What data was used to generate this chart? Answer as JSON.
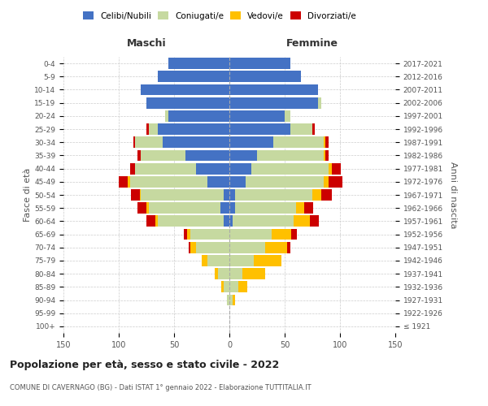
{
  "age_groups": [
    "100+",
    "95-99",
    "90-94",
    "85-89",
    "80-84",
    "75-79",
    "70-74",
    "65-69",
    "60-64",
    "55-59",
    "50-54",
    "45-49",
    "40-44",
    "35-39",
    "30-34",
    "25-29",
    "20-24",
    "15-19",
    "10-14",
    "5-9",
    "0-4"
  ],
  "birth_years": [
    "≤ 1921",
    "1922-1926",
    "1927-1931",
    "1932-1936",
    "1937-1941",
    "1942-1946",
    "1947-1951",
    "1952-1956",
    "1957-1961",
    "1962-1966",
    "1967-1971",
    "1972-1976",
    "1977-1981",
    "1982-1986",
    "1987-1991",
    "1992-1996",
    "1997-2001",
    "2002-2006",
    "2007-2011",
    "2012-2016",
    "2017-2021"
  ],
  "males": {
    "celibi": [
      0,
      0,
      0,
      0,
      0,
      0,
      0,
      0,
      5,
      8,
      5,
      20,
      30,
      40,
      60,
      65,
      55,
      75,
      80,
      65,
      55
    ],
    "coniugati": [
      0,
      0,
      2,
      5,
      10,
      20,
      30,
      35,
      60,
      65,
      75,
      70,
      55,
      40,
      25,
      8,
      3,
      0,
      0,
      0,
      0
    ],
    "vedovi": [
      0,
      0,
      0,
      2,
      3,
      5,
      5,
      3,
      2,
      2,
      1,
      2,
      0,
      0,
      0,
      0,
      0,
      0,
      0,
      0,
      0
    ],
    "divorziati": [
      0,
      0,
      0,
      0,
      0,
      0,
      2,
      3,
      8,
      8,
      8,
      8,
      5,
      3,
      2,
      2,
      0,
      0,
      0,
      0,
      0
    ]
  },
  "females": {
    "nubili": [
      0,
      0,
      0,
      0,
      0,
      0,
      0,
      0,
      3,
      5,
      5,
      15,
      20,
      25,
      40,
      55,
      50,
      80,
      80,
      65,
      55
    ],
    "coniugate": [
      0,
      0,
      3,
      8,
      12,
      22,
      32,
      38,
      55,
      55,
      70,
      70,
      70,
      60,
      45,
      20,
      5,
      3,
      0,
      0,
      0
    ],
    "vedove": [
      0,
      0,
      2,
      8,
      20,
      25,
      20,
      18,
      15,
      8,
      8,
      5,
      3,
      2,
      2,
      0,
      0,
      0,
      0,
      0,
      0
    ],
    "divorziate": [
      0,
      0,
      0,
      0,
      0,
      0,
      3,
      5,
      8,
      8,
      10,
      12,
      8,
      3,
      3,
      2,
      0,
      0,
      0,
      0,
      0
    ]
  },
  "color_celibi": "#4472c4",
  "color_coniugati": "#c6d9a0",
  "color_vedovi": "#ffc000",
  "color_divorziati": "#cc0000",
  "title": "Popolazione per età, sesso e stato civile - 2022",
  "subtitle": "COMUNE DI CAVERNAGO (BG) - Dati ISTAT 1° gennaio 2022 - Elaborazione TUTTITALIA.IT",
  "xlabel_left": "Maschi",
  "xlabel_right": "Femmine",
  "ylabel_left": "Fasce di età",
  "ylabel_right": "Anni di nascita",
  "xlim": 150,
  "background_color": "#ffffff",
  "grid_color": "#cccccc"
}
